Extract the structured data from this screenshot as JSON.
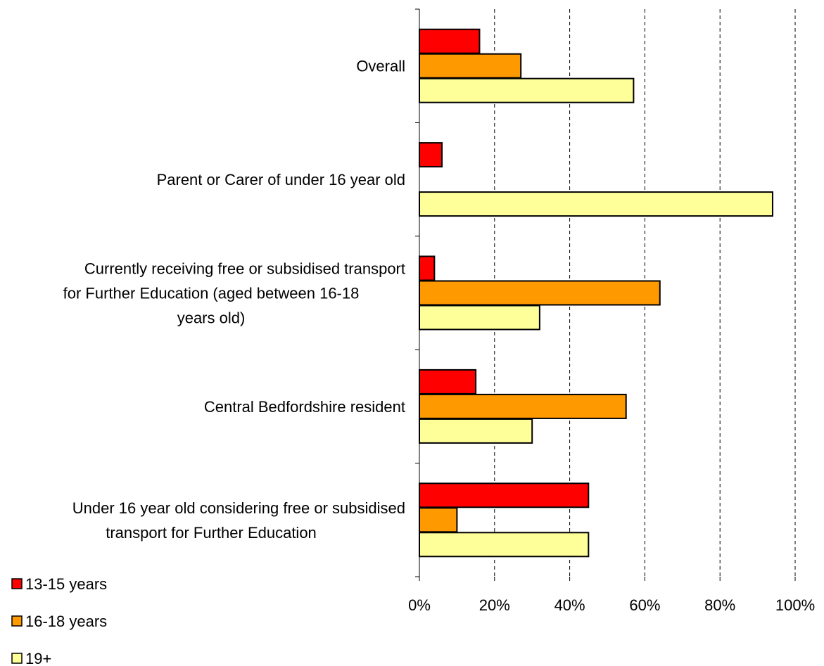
{
  "chart_data": {
    "type": "bar",
    "orientation": "horizontal",
    "categories": [
      "Overall",
      "Parent or Carer of under 16 year old",
      "Currently receiving free or subsidised transport for Further Education (aged between 16-18 years old)",
      "Central Bedfordshire resident",
      "Under 16 year old considering free or subsidised transport for Further Education"
    ],
    "series": [
      {
        "name": "13-15 years",
        "color": "#ff0000",
        "values": [
          16,
          6,
          4,
          15,
          45
        ]
      },
      {
        "name": "16-18 years",
        "color": "#ff9900",
        "values": [
          27,
          0,
          64,
          55,
          10
        ]
      },
      {
        "name": "19+",
        "color": "#ffff99",
        "values": [
          57,
          94,
          32,
          30,
          45
        ]
      }
    ],
    "xlim": [
      0,
      100
    ],
    "x_ticks": [
      "0%",
      "20%",
      "40%",
      "60%",
      "80%",
      "100%"
    ],
    "grid": "vertical dashed",
    "legend_position": "bottom-left",
    "title": "",
    "xlabel": "",
    "ylabel": ""
  }
}
